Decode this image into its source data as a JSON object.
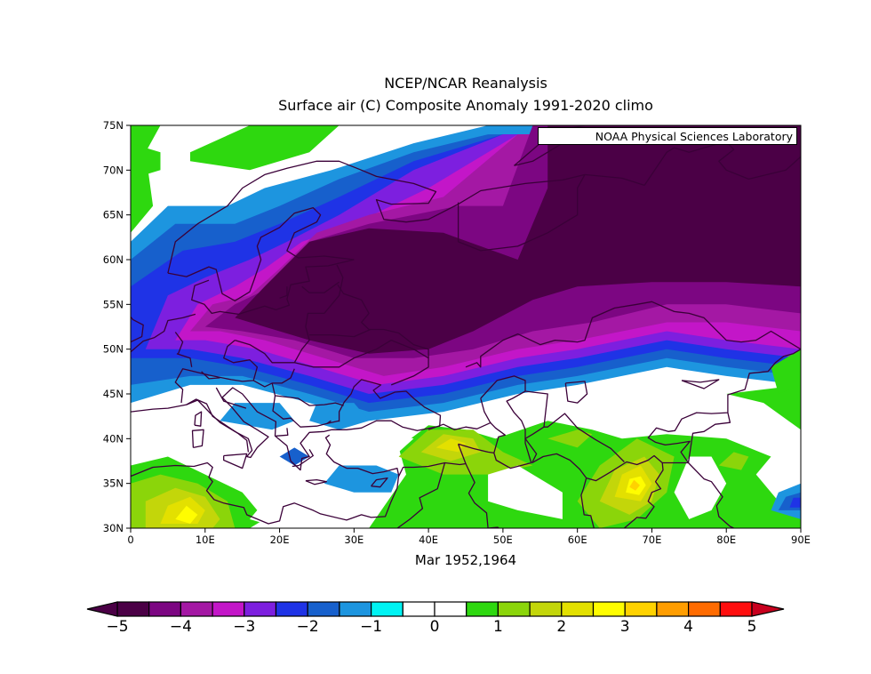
{
  "title": "NCEP/NCAR Reanalysis",
  "subtitle": "Surface air (C) Composite Anomaly 1991-2020 climo",
  "x_caption": "Mar 1952,1964",
  "credit": "NOAA Physical Sciences Laboratory",
  "map": {
    "projection": "lat-lon",
    "lon_range": [
      0,
      90
    ],
    "lat_range": [
      30,
      75
    ],
    "lon_ticks": [
      "0",
      "10E",
      "20E",
      "30E",
      "40E",
      "50E",
      "60E",
      "70E",
      "80E",
      "90E"
    ],
    "lat_ticks": [
      "30N",
      "35N",
      "40N",
      "45N",
      "50N",
      "55N",
      "60N",
      "65N",
      "70N",
      "75N"
    ]
  },
  "colorbar": {
    "labels": [
      "-5",
      "-4",
      "-3",
      "-2",
      "-1",
      "0",
      "1",
      "2",
      "3",
      "4",
      "5"
    ],
    "colors": [
      "#4b0046",
      "#7c0682",
      "#a418a4",
      "#c316c8",
      "#7d1fdf",
      "#1f33e6",
      "#1760cc",
      "#1d95df",
      "#00f3f3",
      "#ffffff",
      "#ffffff",
      "#2ed80f",
      "#8bd50a",
      "#c3d60a",
      "#e3e000",
      "#fffd00",
      "#ffd200",
      "#ff9d00",
      "#ff6b00",
      "#ff0e0e"
    ],
    "low_arrow_color": "#4b0046",
    "high_arrow_color": "#c8001e"
  },
  "chart_data": {
    "type": "heatmap",
    "title": "NCEP/NCAR Reanalysis",
    "subtitle": "Surface air (C) Composite Anomaly 1991-2020 climo",
    "xlabel": "Mar 1952,1964",
    "xlim": [
      0,
      90
    ],
    "ylim": [
      30,
      75
    ],
    "value_range": [
      -5,
      5
    ],
    "anomaly_regions": [
      {
        "lon": [
          25,
          45
        ],
        "lat": [
          50,
          62
        ],
        "value": -5
      },
      {
        "lon": [
          55,
          90
        ],
        "lat": [
          57,
          75
        ],
        "value": -5
      },
      {
        "lon": [
          15,
          25
        ],
        "lat": [
          50,
          57
        ],
        "value": -4
      },
      {
        "lon": [
          50,
          90
        ],
        "lat": [
          52,
          57
        ],
        "value": -4
      },
      {
        "lon": [
          5,
          15
        ],
        "lat": [
          55,
          60
        ],
        "value": -2
      },
      {
        "lon": [
          0,
          5
        ],
        "lat": [
          60,
          72
        ],
        "value": 1
      },
      {
        "lon": [
          35,
          50
        ],
        "lat": [
          35,
          41
        ],
        "value": 2
      },
      {
        "lon": [
          65,
          72
        ],
        "lat": [
          32,
          38
        ],
        "value": 3
      },
      {
        "lon": [
          5,
          12
        ],
        "lat": [
          30,
          35
        ],
        "value": 2
      },
      {
        "lon": [
          85,
          90
        ],
        "lat": [
          30,
          35
        ],
        "value": -2
      }
    ]
  }
}
